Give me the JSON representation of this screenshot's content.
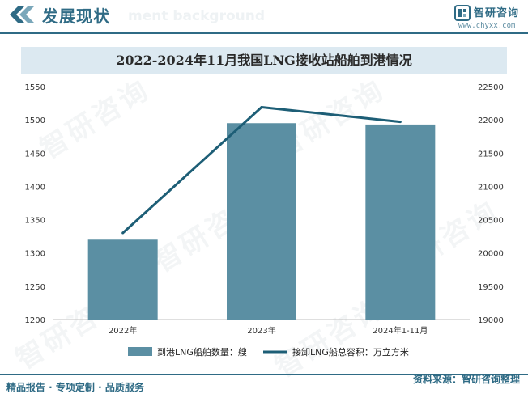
{
  "header": {
    "title": "发展现状",
    "ghost_text": "ment background",
    "brand_name": "智研咨询",
    "brand_url": "www.chyxx.com"
  },
  "watermark": {
    "text": "智研咨询"
  },
  "footer": {
    "left": "精品报告 · 专项定制 · 品质服务",
    "source": "资料来源：智研咨询整理"
  },
  "colors": {
    "bar": "#5b8fa3",
    "line": "#1d5e76",
    "title_bg": "#dce9f1",
    "brand": "#2f6b85"
  },
  "chart_data": {
    "type": "bar",
    "title": "2022-2024年11月我国LNG接收站船舶到港情况",
    "categories": [
      "2022年",
      "2023年",
      "2024年1-11月"
    ],
    "y_left": {
      "min": 1200,
      "max": 1550,
      "step": 50,
      "ticks": [
        "1200",
        "1250",
        "1300",
        "1350",
        "1400",
        "1450",
        "1500",
        "1550"
      ]
    },
    "y_right": {
      "min": 19000,
      "max": 22500,
      "step": 500,
      "ticks": [
        "19000",
        "19500",
        "20000",
        "20500",
        "21000",
        "21500",
        "22000",
        "22500"
      ]
    },
    "series": [
      {
        "name": "到港LNG船舶数量：艘",
        "kind": "bar",
        "axis": "left",
        "values": [
          1320,
          1495,
          1493
        ]
      },
      {
        "name": "接卸LNG船总容积：万立方米",
        "kind": "line",
        "axis": "right",
        "values": [
          20300,
          22190,
          21970
        ]
      }
    ],
    "legend_position": "bottom",
    "grid": false
  }
}
